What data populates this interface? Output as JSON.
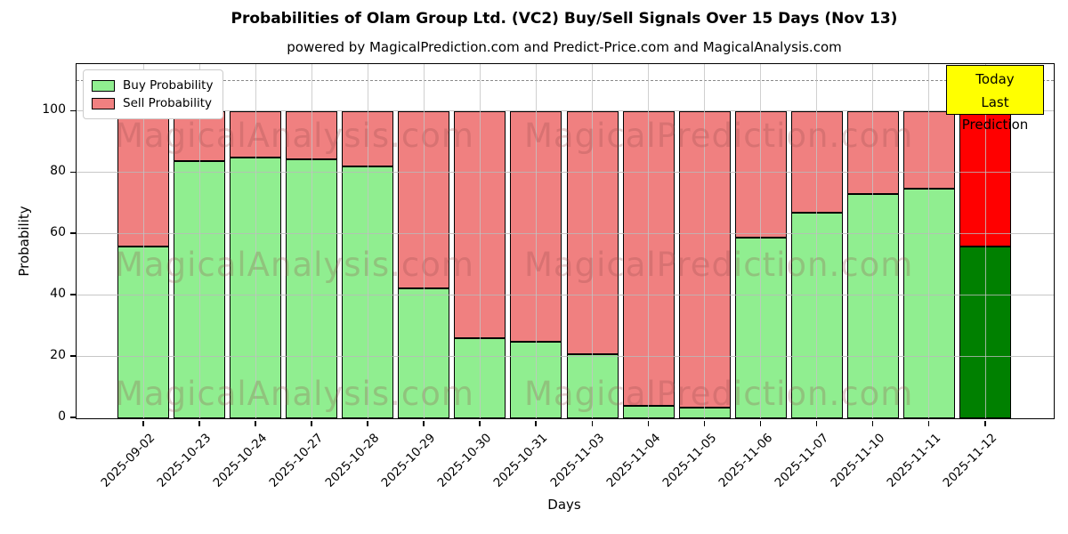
{
  "page": {
    "title": "Probabilities of Olam Group Ltd. (VC2) Buy/Sell Signals Over 15 Days (Nov 13)",
    "subtitle": "powered by MagicalPrediction.com and Predict-Price.com and MagicalAnalysis.com"
  },
  "axes": {
    "ylabel": "Probability",
    "xlabel": "Days",
    "ytick_values": [
      0,
      20,
      40,
      60,
      80,
      100
    ]
  },
  "legend": [
    {
      "label": "Buy Probability",
      "color": "#90EE90"
    },
    {
      "label": "Sell Probability",
      "color": "#F08080"
    }
  ],
  "annotation": {
    "line1": "Today",
    "line2": "Last Prediction",
    "bg": "#FFFF00"
  },
  "watermarks": {
    "left": "MagicalAnalysis.com",
    "right": "MagicalPrediction.com"
  },
  "chart_data": {
    "type": "bar",
    "stacked": true,
    "title": "Probabilities of Olam Group Ltd. (VC2) Buy/Sell Signals Over 15 Days (Nov 13)",
    "xlabel": "Days",
    "ylabel": "Probability",
    "ylim": [
      0,
      115
    ],
    "dashed_line_y": 110,
    "grid": true,
    "legend_position": "upper left",
    "bar_edge_color": "#000000",
    "categories": [
      "2025-09-02",
      "2025-10-23",
      "2025-10-24",
      "2025-10-27",
      "2025-10-28",
      "2025-10-29",
      "2025-10-30",
      "2025-10-31",
      "2025-11-03",
      "2025-11-04",
      "2025-11-05",
      "2025-11-06",
      "2025-11-07",
      "2025-11-10",
      "2025-11-11",
      "2025-11-12"
    ],
    "series": [
      {
        "name": "Buy Probability",
        "color": "#90EE90",
        "values": [
          56,
          84,
          85,
          84.5,
          82,
          42.5,
          26,
          25,
          21,
          4,
          3.5,
          59,
          67,
          73,
          75,
          56
        ]
      },
      {
        "name": "Sell Probability",
        "color": "#F08080",
        "values": [
          44,
          16,
          15,
          15.5,
          18,
          57.5,
          74,
          75,
          79,
          96,
          96.5,
          41,
          33,
          27,
          25,
          44
        ]
      }
    ],
    "today_index": 15,
    "today_colors": {
      "buy": "#008000",
      "sell": "#FF0000"
    }
  }
}
